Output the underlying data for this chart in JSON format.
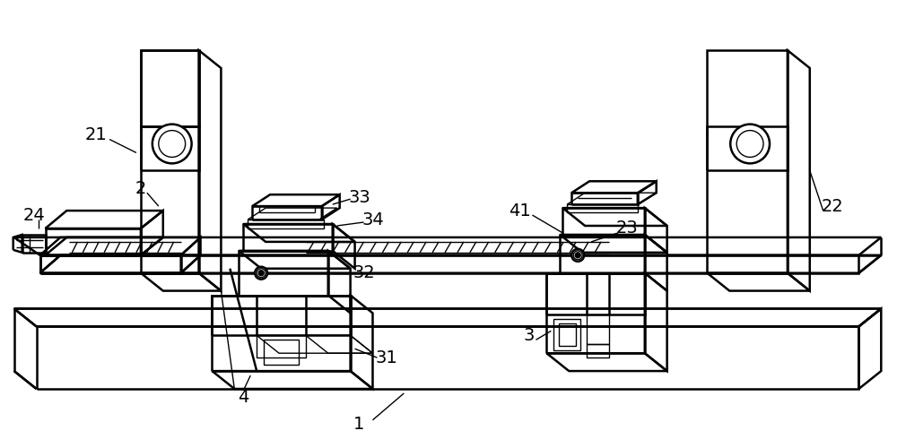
{
  "background_color": "#ffffff",
  "line_color": "#000000",
  "lw": 1.8,
  "lw_thin": 1.0,
  "figsize": [
    10,
    5
  ],
  "dpi": 100
}
